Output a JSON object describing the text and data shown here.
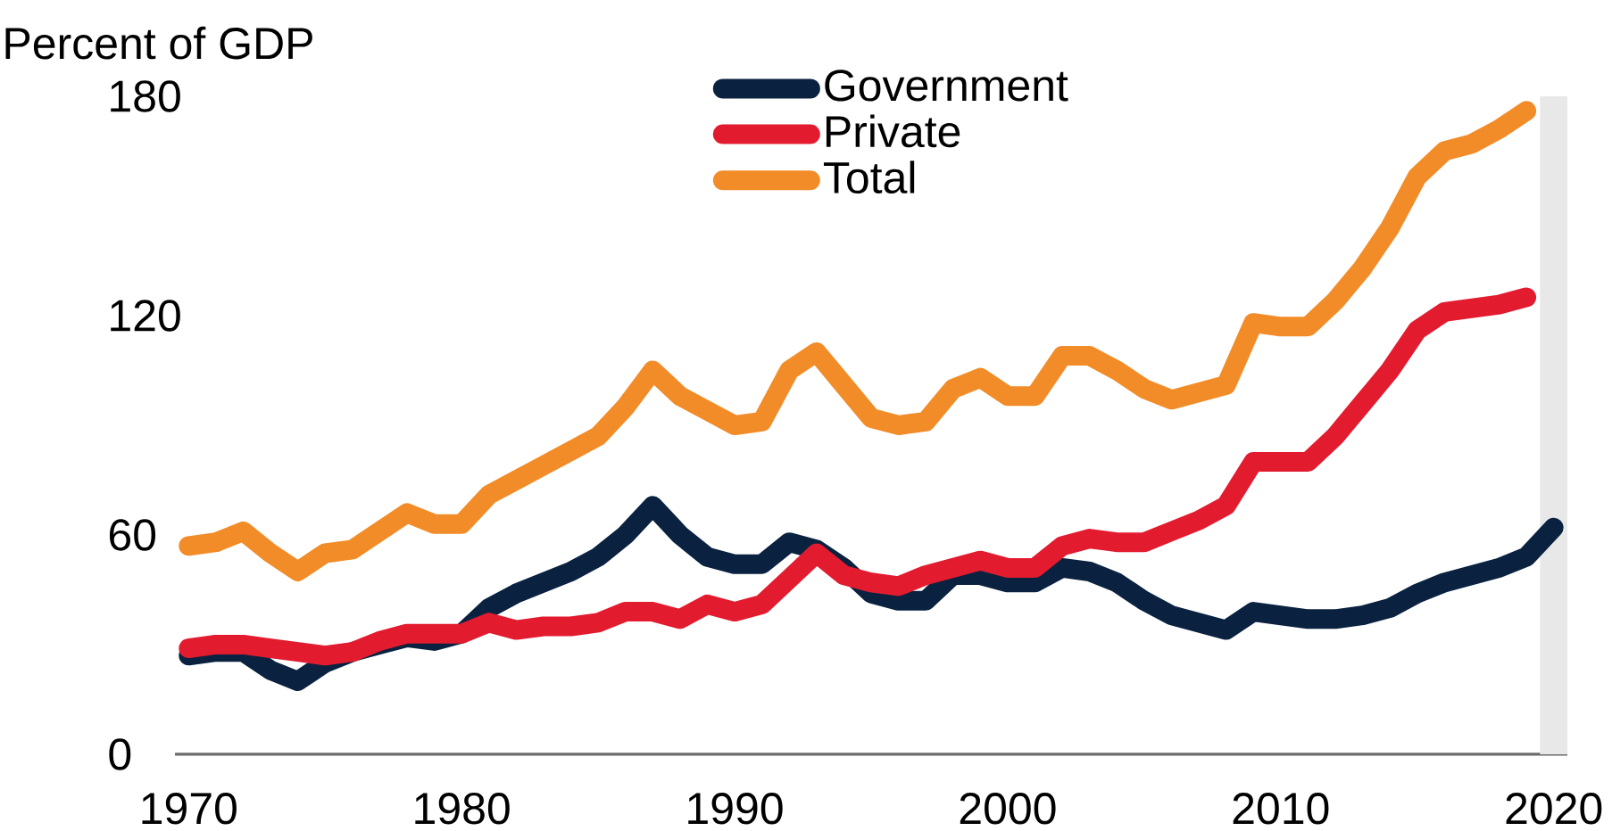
{
  "chart_data": {
    "type": "line",
    "ylabel": "Percent of GDP",
    "x": [
      1970,
      1971,
      1972,
      1973,
      1974,
      1975,
      1976,
      1977,
      1978,
      1979,
      1980,
      1981,
      1982,
      1983,
      1984,
      1985,
      1986,
      1987,
      1988,
      1989,
      1990,
      1991,
      1992,
      1993,
      1994,
      1995,
      1996,
      1997,
      1998,
      1999,
      2000,
      2001,
      2002,
      2003,
      2004,
      2005,
      2006,
      2007,
      2008,
      2009,
      2010,
      2011,
      2012,
      2013,
      2014,
      2015,
      2016,
      2017,
      2018,
      2019,
      2020
    ],
    "series": [
      {
        "name": "Government",
        "color": "#0a2240",
        "values": [
          27,
          28,
          28,
          23,
          20,
          25,
          28,
          30,
          32,
          31,
          33,
          40,
          44,
          47,
          50,
          54,
          60,
          68,
          60,
          54,
          52,
          52,
          58,
          56,
          51,
          44,
          42,
          42,
          49,
          49,
          47,
          47,
          51,
          50,
          47,
          42,
          38,
          36,
          34,
          39,
          38,
          37,
          37,
          38,
          40,
          44,
          47,
          49,
          51,
          54,
          62
        ]
      },
      {
        "name": "Private",
        "color": "#e31b2f",
        "values": [
          29,
          30,
          30,
          29,
          28,
          27,
          28,
          31,
          33,
          33,
          33,
          36,
          34,
          35,
          35,
          36,
          39,
          39,
          37,
          41,
          39,
          41,
          48,
          55,
          49,
          47,
          46,
          49,
          51,
          53,
          51,
          51,
          57,
          59,
          58,
          58,
          61,
          64,
          68,
          80,
          80,
          80,
          87,
          96,
          105,
          116,
          121,
          122,
          123,
          125,
          null
        ]
      },
      {
        "name": "Total",
        "color": "#f28c28",
        "values": [
          57,
          58,
          61,
          55,
          50,
          55,
          56,
          61,
          66,
          63,
          63,
          71,
          75,
          79,
          83,
          87,
          95,
          105,
          98,
          94,
          90,
          91,
          105,
          110,
          101,
          92,
          90,
          91,
          100,
          103,
          98,
          98,
          109,
          109,
          105,
          100,
          97,
          99,
          101,
          118,
          117,
          117,
          124,
          133,
          144,
          158,
          165,
          167,
          171,
          176,
          null
        ]
      }
    ],
    "xlim": [
      1969.5,
      2020.5
    ],
    "ylim": [
      0,
      180
    ],
    "xticks": [
      1970,
      1980,
      1990,
      2000,
      2010,
      2020
    ],
    "yticks": [
      0,
      60,
      120,
      180
    ],
    "bands": [
      {
        "axis": "x",
        "from": 2019.5,
        "to": 2020.5,
        "color": "#e8e8e8"
      }
    ],
    "legend": "top",
    "line_style": "solid"
  }
}
